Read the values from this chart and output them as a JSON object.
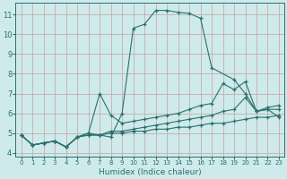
{
  "xlabel": "Humidex (Indice chaleur)",
  "xlim": [
    -0.5,
    23.5
  ],
  "ylim": [
    3.8,
    11.6
  ],
  "yticks": [
    4,
    5,
    6,
    7,
    8,
    9,
    10,
    11
  ],
  "xticks": [
    0,
    1,
    2,
    3,
    4,
    5,
    6,
    7,
    8,
    9,
    10,
    11,
    12,
    13,
    14,
    15,
    16,
    17,
    18,
    19,
    20,
    21,
    22,
    23
  ],
  "bg_color": "#ceeaea",
  "line_color": "#2a7070",
  "grid_color": "#b0d8d8",
  "lines": [
    {
      "x": [
        0,
        1,
        2,
        3,
        4,
        5,
        6,
        7,
        8,
        9,
        10,
        11,
        12,
        13,
        14,
        15,
        16,
        17,
        19,
        20,
        21,
        22,
        23
      ],
      "y": [
        4.9,
        4.4,
        4.5,
        4.6,
        4.3,
        4.8,
        5.0,
        4.9,
        4.8,
        6.0,
        10.3,
        10.5,
        11.2,
        11.2,
        11.1,
        11.05,
        10.8,
        8.3,
        7.7,
        7.0,
        6.1,
        6.2,
        5.8
      ]
    },
    {
      "x": [
        0,
        1,
        2,
        3,
        4,
        5,
        6,
        7,
        8,
        9,
        10,
        11,
        12,
        13,
        14,
        15,
        16,
        17,
        18,
        19,
        20,
        21,
        22,
        23
      ],
      "y": [
        4.9,
        4.4,
        4.5,
        4.6,
        4.3,
        4.8,
        5.0,
        7.0,
        5.9,
        5.5,
        5.6,
        5.7,
        5.8,
        5.9,
        6.0,
        6.2,
        6.4,
        6.5,
        7.5,
        7.2,
        7.6,
        6.1,
        6.2,
        6.2
      ]
    },
    {
      "x": [
        0,
        1,
        2,
        3,
        4,
        5,
        6,
        7,
        8,
        9,
        10,
        11,
        12,
        13,
        14,
        15,
        16,
        17,
        18,
        19,
        20,
        21,
        22,
        23
      ],
      "y": [
        4.9,
        4.4,
        4.5,
        4.6,
        4.3,
        4.8,
        4.9,
        4.9,
        5.1,
        5.1,
        5.2,
        5.3,
        5.4,
        5.5,
        5.6,
        5.7,
        5.8,
        5.9,
        6.1,
        6.2,
        6.8,
        6.1,
        6.3,
        6.4
      ]
    },
    {
      "x": [
        0,
        1,
        2,
        3,
        4,
        5,
        6,
        7,
        8,
        9,
        10,
        11,
        12,
        13,
        14,
        15,
        16,
        17,
        18,
        19,
        20,
        21,
        22,
        23
      ],
      "y": [
        4.9,
        4.4,
        4.5,
        4.6,
        4.3,
        4.8,
        4.9,
        4.9,
        5.0,
        5.0,
        5.1,
        5.1,
        5.2,
        5.2,
        5.3,
        5.3,
        5.4,
        5.5,
        5.5,
        5.6,
        5.7,
        5.8,
        5.8,
        5.9
      ]
    }
  ]
}
